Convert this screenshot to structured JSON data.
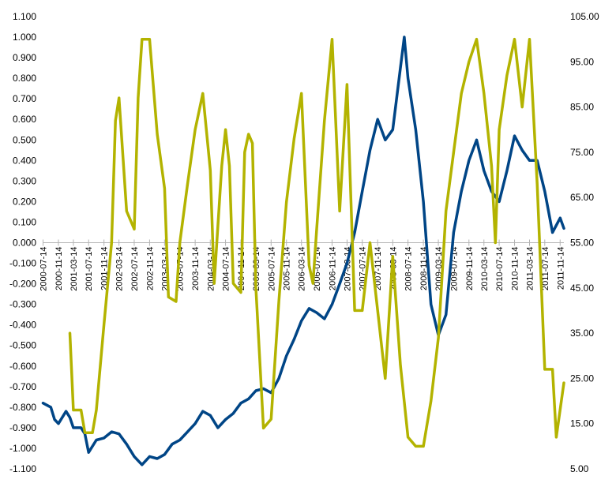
{
  "chart_data": {
    "type": "line",
    "title": "",
    "xlabel": "",
    "ylabel": "",
    "grid": false,
    "legend": "none",
    "x_tick_labels": [
      "2000-07-14",
      "2000-11-14",
      "2001-03-14",
      "2001-07-14",
      "2001-11-14",
      "2002-03-14",
      "2002-07-14",
      "2002-11-14",
      "2003-03-14",
      "2003-07-14",
      "2003-11-14",
      "2004-03-14",
      "2004-07-14",
      "2004-11-14",
      "2005-03-14",
      "2005-07-14",
      "2005-11-14",
      "2006-03-14",
      "2006-07-14",
      "2006-11-14",
      "2007-03-14",
      "2007-07-14",
      "2007-11-14",
      "2008-03-14",
      "2008-07-14",
      "2008-11-14",
      "2009-03-14",
      "2009-07-14",
      "2009-11-14",
      "2010-03-14",
      "2010-07-14",
      "2010-11-14",
      "2011-03-14",
      "2011-07-14",
      "2011-11-14"
    ],
    "y_left": {
      "min": -1.1,
      "max": 1.1,
      "step": 0.1,
      "tick_labels": [
        "1.100",
        "1.000",
        "0.900",
        "0.800",
        "0.700",
        "0.600",
        "0.500",
        "0.400",
        "0.300",
        "0.200",
        "0.100",
        "0.000",
        "-0.100",
        "-0.200",
        "-0.300",
        "-0.400",
        "-0.500",
        "-0.600",
        "-0.700",
        "-0.800",
        "-0.900",
        "-1.000",
        "-1.100"
      ]
    },
    "y_right": {
      "min": 5,
      "max": 105,
      "step": 10,
      "tick_labels": [
        "105.00",
        "95.00",
        "85.00",
        "75.00",
        "65.00",
        "55.00",
        "45.00",
        "35.00",
        "25.00",
        "15.00",
        "5.00"
      ]
    },
    "series": [
      {
        "axis": "left",
        "color": "#004586",
        "points": [
          [
            "2000-07-14",
            -0.78
          ],
          [
            "2000-09-14",
            -0.8
          ],
          [
            "2000-10-14",
            -0.86
          ],
          [
            "2000-11-14",
            -0.88
          ],
          [
            "2001-01-14",
            -0.82
          ],
          [
            "2001-02-14",
            -0.85
          ],
          [
            "2001-03-14",
            -0.9
          ],
          [
            "2001-05-14",
            -0.9
          ],
          [
            "2001-06-14",
            -0.93
          ],
          [
            "2001-07-14",
            -1.02
          ],
          [
            "2001-09-14",
            -0.96
          ],
          [
            "2001-11-14",
            -0.95
          ],
          [
            "2002-01-14",
            -0.92
          ],
          [
            "2002-03-14",
            -0.93
          ],
          [
            "2002-05-14",
            -0.98
          ],
          [
            "2002-07-14",
            -1.04
          ],
          [
            "2002-09-14",
            -1.08
          ],
          [
            "2002-11-14",
            -1.04
          ],
          [
            "2003-01-14",
            -1.05
          ],
          [
            "2003-03-14",
            -1.03
          ],
          [
            "2003-05-14",
            -0.98
          ],
          [
            "2003-07-14",
            -0.96
          ],
          [
            "2003-09-14",
            -0.92
          ],
          [
            "2003-11-14",
            -0.88
          ],
          [
            "2004-01-14",
            -0.82
          ],
          [
            "2004-03-14",
            -0.84
          ],
          [
            "2004-05-14",
            -0.9
          ],
          [
            "2004-07-14",
            -0.86
          ],
          [
            "2004-09-14",
            -0.83
          ],
          [
            "2004-11-14",
            -0.78
          ],
          [
            "2005-01-14",
            -0.76
          ],
          [
            "2005-03-14",
            -0.72
          ],
          [
            "2005-05-14",
            -0.71
          ],
          [
            "2005-07-14",
            -0.73
          ],
          [
            "2005-09-14",
            -0.66
          ],
          [
            "2005-11-14",
            -0.55
          ],
          [
            "2006-01-14",
            -0.47
          ],
          [
            "2006-03-14",
            -0.38
          ],
          [
            "2006-05-14",
            -0.32
          ],
          [
            "2006-07-14",
            -0.34
          ],
          [
            "2006-09-14",
            -0.37
          ],
          [
            "2006-11-14",
            -0.3
          ],
          [
            "2007-01-14",
            -0.2
          ],
          [
            "2007-03-14",
            -0.1
          ],
          [
            "2007-05-14",
            0.05
          ],
          [
            "2007-07-14",
            0.25
          ],
          [
            "2007-09-14",
            0.45
          ],
          [
            "2007-11-14",
            0.6
          ],
          [
            "2008-01-14",
            0.5
          ],
          [
            "2008-03-14",
            0.55
          ],
          [
            "2008-05-14",
            0.85
          ],
          [
            "2008-06-14",
            1.0
          ],
          [
            "2008-07-14",
            0.8
          ],
          [
            "2008-09-14",
            0.55
          ],
          [
            "2008-11-14",
            0.2
          ],
          [
            "2009-01-14",
            -0.3
          ],
          [
            "2009-03-14",
            -0.45
          ],
          [
            "2009-05-14",
            -0.35
          ],
          [
            "2009-07-14",
            0.05
          ],
          [
            "2009-09-14",
            0.25
          ],
          [
            "2009-11-14",
            0.4
          ],
          [
            "2010-01-14",
            0.5
          ],
          [
            "2010-03-14",
            0.35
          ],
          [
            "2010-05-14",
            0.25
          ],
          [
            "2010-07-14",
            0.2
          ],
          [
            "2010-09-14",
            0.35
          ],
          [
            "2010-11-14",
            0.52
          ],
          [
            "2011-01-14",
            0.45
          ],
          [
            "2011-03-14",
            0.4
          ],
          [
            "2011-05-14",
            0.4
          ],
          [
            "2011-07-14",
            0.25
          ],
          [
            "2011-09-14",
            0.05
          ],
          [
            "2011-11-14",
            0.12
          ],
          [
            "2011-12-14",
            0.07
          ]
        ]
      },
      {
        "axis": "right",
        "color": "#b3b300",
        "points": [
          [
            "2001-02-14",
            35
          ],
          [
            "2001-03-14",
            18
          ],
          [
            "2001-05-14",
            18
          ],
          [
            "2001-06-14",
            13
          ],
          [
            "2001-07-14",
            13
          ],
          [
            "2001-08-14",
            13
          ],
          [
            "2001-09-14",
            18
          ],
          [
            "2001-11-14",
            37
          ],
          [
            "2002-01-14",
            55
          ],
          [
            "2002-02-14",
            82
          ],
          [
            "2002-03-14",
            87
          ],
          [
            "2002-05-14",
            62
          ],
          [
            "2002-06-14",
            60
          ],
          [
            "2002-07-14",
            58
          ],
          [
            "2002-08-14",
            87
          ],
          [
            "2002-09-14",
            100
          ],
          [
            "2002-11-14",
            100
          ],
          [
            "2003-01-14",
            79
          ],
          [
            "2003-03-14",
            67
          ],
          [
            "2003-04-14",
            43
          ],
          [
            "2003-06-14",
            42
          ],
          [
            "2003-07-14",
            55
          ],
          [
            "2003-09-14",
            68
          ],
          [
            "2003-11-14",
            80
          ],
          [
            "2004-01-14",
            88
          ],
          [
            "2004-03-14",
            71
          ],
          [
            "2004-04-14",
            46
          ],
          [
            "2004-06-14",
            72
          ],
          [
            "2004-07-14",
            80
          ],
          [
            "2004-08-14",
            72
          ],
          [
            "2004-09-14",
            46
          ],
          [
            "2004-11-14",
            44
          ],
          [
            "2004-12-14",
            75
          ],
          [
            "2005-01-14",
            79
          ],
          [
            "2005-02-14",
            77
          ],
          [
            "2005-03-14",
            45
          ],
          [
            "2005-05-14",
            14
          ],
          [
            "2005-07-14",
            16
          ],
          [
            "2005-09-14",
            42
          ],
          [
            "2005-11-14",
            64
          ],
          [
            "2006-01-14",
            78
          ],
          [
            "2006-03-14",
            88
          ],
          [
            "2006-05-14",
            50
          ],
          [
            "2006-06-14",
            46
          ],
          [
            "2006-07-14",
            58
          ],
          [
            "2006-09-14",
            82
          ],
          [
            "2006-11-14",
            100
          ],
          [
            "2007-01-14",
            62
          ],
          [
            "2007-03-14",
            90
          ],
          [
            "2007-05-14",
            40
          ],
          [
            "2007-07-14",
            40
          ],
          [
            "2007-09-14",
            55
          ],
          [
            "2007-11-14",
            40
          ],
          [
            "2008-01-14",
            25
          ],
          [
            "2008-03-14",
            52
          ],
          [
            "2008-05-14",
            28
          ],
          [
            "2008-07-14",
            12
          ],
          [
            "2008-09-14",
            10
          ],
          [
            "2008-11-14",
            10
          ],
          [
            "2009-01-14",
            20
          ],
          [
            "2009-03-14",
            34
          ],
          [
            "2009-05-14",
            62
          ],
          [
            "2009-07-14",
            75
          ],
          [
            "2009-09-14",
            88
          ],
          [
            "2009-11-14",
            95
          ],
          [
            "2010-01-14",
            100
          ],
          [
            "2010-03-14",
            88
          ],
          [
            "2010-05-14",
            72
          ],
          [
            "2010-06-14",
            55
          ],
          [
            "2010-07-14",
            80
          ],
          [
            "2010-09-14",
            92
          ],
          [
            "2010-11-14",
            100
          ],
          [
            "2011-01-14",
            85
          ],
          [
            "2011-03-14",
            100
          ],
          [
            "2011-05-14",
            68
          ],
          [
            "2011-07-14",
            27
          ],
          [
            "2011-09-14",
            27
          ],
          [
            "2011-10-14",
            12
          ],
          [
            "2011-12-14",
            24
          ]
        ]
      }
    ]
  }
}
